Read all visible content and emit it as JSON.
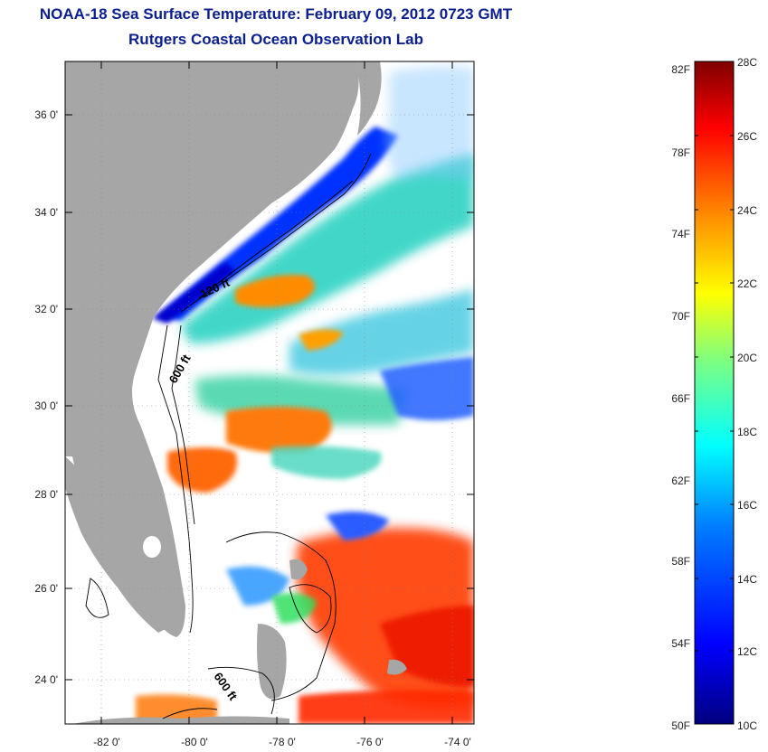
{
  "title": "NOAA-18 Sea Surface Temperature:  February 09, 2012 0723 GMT",
  "subtitle": "Rutgers Coastal Ocean Observation Lab",
  "map": {
    "lat_ticks": [
      "36 0'",
      "34 0'",
      "32 0'",
      "30 0'",
      "28 0'",
      "26 0'",
      "24 0'"
    ],
    "lon_ticks": [
      "-82 0'",
      "-80 0'",
      "-78 0'",
      "-76 0'",
      "-74 0'"
    ],
    "contour_labels": [
      "120 ft",
      "600 ft",
      "600 ft"
    ],
    "land_color": "#a6a6a6",
    "cloud_color": "#ffffff"
  },
  "colorbar": {
    "fahrenheit_labels": [
      "82F",
      "78F",
      "74F",
      "70F",
      "66F",
      "62F",
      "58F",
      "54F",
      "50F"
    ],
    "celsius_labels": [
      "28C",
      "26C",
      "24C",
      "22C",
      "20C",
      "18C",
      "16C",
      "14C",
      "12C",
      "10C"
    ],
    "min_c": 10,
    "max_c": 28,
    "colors": [
      "#00007f",
      "#0000ff",
      "#007fff",
      "#00ffff",
      "#7fff7f",
      "#ffff00",
      "#ff7f00",
      "#ff0000",
      "#7f0000"
    ]
  }
}
